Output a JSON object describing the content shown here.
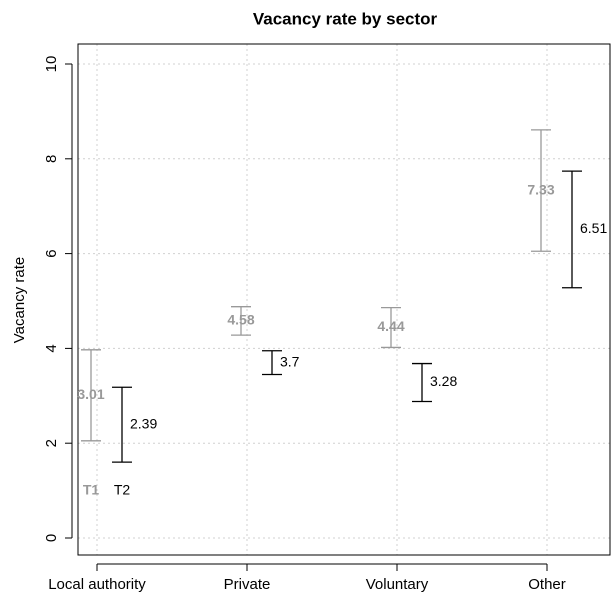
{
  "chart_data": {
    "type": "errorbar",
    "title": "Vacancy rate by sector",
    "ylabel": "Vacancy rate",
    "categories": [
      "Local authority",
      "Private",
      "Voluntary",
      "Other"
    ],
    "series": [
      {
        "name": "T1",
        "color": "#999999",
        "values": [
          3.01,
          4.58,
          4.44,
          7.33
        ],
        "errors": [
          0.96,
          0.3,
          0.42,
          1.28
        ]
      },
      {
        "name": "T2",
        "color": "#000000",
        "values": [
          2.39,
          3.7,
          3.28,
          6.51
        ],
        "errors": [
          0.79,
          0.25,
          0.4,
          1.23
        ]
      }
    ],
    "ylim": [
      0,
      10
    ],
    "yticks": [
      0,
      2,
      4,
      6,
      8,
      10
    ],
    "grid": true
  }
}
